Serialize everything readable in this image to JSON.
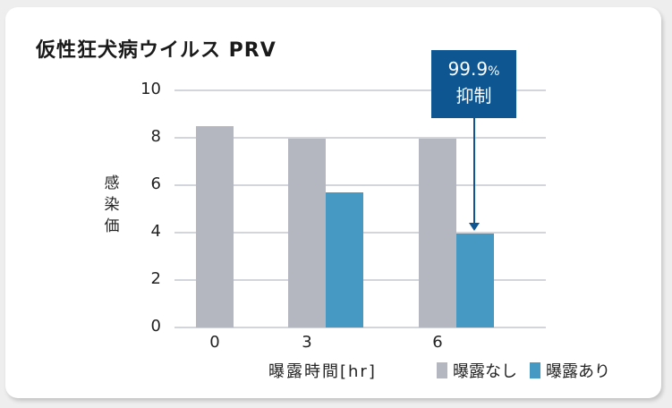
{
  "title": "仮性狂犬病ウイルス PRV",
  "y_axis_label": "感染価",
  "x_axis_label": "曝露時間[hr]",
  "callout": {
    "percent": "99.9",
    "percent_sign": "%",
    "label": "抑制"
  },
  "legend": [
    {
      "label": "曝露なし",
      "color": "#b4b7bf"
    },
    {
      "label": "曝露あり",
      "color": "#4699c2"
    }
  ],
  "y_ticks": [
    "10",
    "8",
    "6",
    "4",
    "2",
    "0"
  ],
  "x_ticks": [
    "0",
    "3",
    "6"
  ],
  "chart_data": {
    "type": "bar",
    "title": "仮性狂犬病ウイルス PRV",
    "xlabel": "曝露時間[hr]",
    "ylabel": "感染価",
    "categories": [
      "0",
      "3",
      "6"
    ],
    "series": [
      {
        "name": "曝露なし",
        "color": "#b4b7bf",
        "values": [
          8.5,
          7.95,
          7.95
        ]
      },
      {
        "name": "曝露あり",
        "color": "#4699c2",
        "values": [
          null,
          5.7,
          3.95
        ]
      }
    ],
    "ylim": [
      0,
      10
    ],
    "yticks": [
      0,
      2,
      4,
      6,
      8,
      10
    ],
    "grid": true,
    "legend_position": "bottom-right",
    "annotations": [
      {
        "text": "99.9% 抑制",
        "target": "6hr 曝露あり",
        "style": "boxed callout with downward arrow"
      }
    ]
  }
}
